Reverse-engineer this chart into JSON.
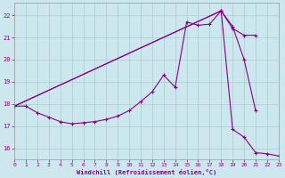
{
  "background_color": "#cce8ee",
  "grid_color": "#aacccc",
  "line_color": "#880088",
  "xlim": [
    0,
    23
  ],
  "ylim": [
    15.5,
    22.55
  ],
  "yticks": [
    16,
    17,
    18,
    19,
    20,
    21,
    22
  ],
  "xticks": [
    0,
    1,
    2,
    3,
    4,
    5,
    6,
    7,
    8,
    9,
    10,
    11,
    12,
    13,
    14,
    15,
    16,
    17,
    18,
    19,
    20,
    21,
    22,
    23
  ],
  "xlabel": "Windchill (Refroidissement éolien,°C)",
  "curve1_x": [
    0,
    1,
    2,
    3,
    4,
    5,
    6,
    7,
    8,
    9,
    10,
    11,
    12,
    13,
    14,
    15,
    16,
    17,
    18,
    19,
    20,
    21
  ],
  "curve1_y": [
    17.9,
    17.9,
    17.6,
    17.4,
    17.2,
    17.1,
    17.15,
    17.2,
    17.3,
    17.45,
    17.7,
    18.1,
    18.55,
    19.3,
    18.75,
    21.7,
    21.55,
    21.6,
    22.2,
    21.5,
    20.0,
    17.7
  ],
  "curve2_x": [
    0,
    18,
    19,
    20,
    21
  ],
  "curve2_y": [
    17.9,
    22.2,
    21.4,
    21.1,
    21.1
  ],
  "curve3_x": [
    0,
    18,
    19,
    20,
    21,
    22,
    23
  ],
  "curve3_y": [
    17.9,
    22.2,
    16.85,
    16.5,
    15.8,
    15.75,
    15.65
  ]
}
